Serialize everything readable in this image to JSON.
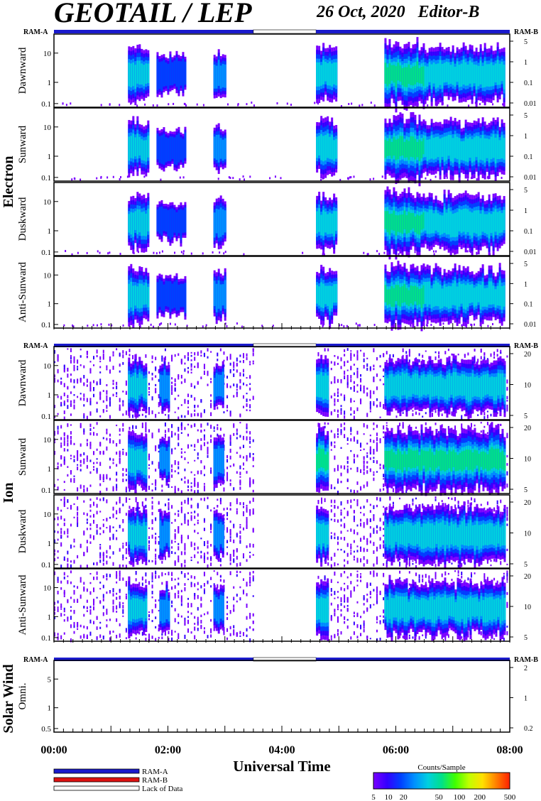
{
  "header": {
    "title": "GEOTAIL / LEP",
    "date": "26 Oct, 2020",
    "editor": "Editor-B"
  },
  "ram_labels": {
    "left": "RAM-A",
    "right": "RAM-B"
  },
  "groups": {
    "electron": "Electron",
    "ion": "Ion",
    "solar_wind": "Solar Wind"
  },
  "chart_data": {
    "type": "heatmap",
    "xlabel": "Universal Time",
    "x_ticks": [
      "00:00",
      "02:00",
      "04:00",
      "06:00",
      "08:00"
    ],
    "xlim_hours": [
      0,
      8
    ],
    "data_gap_hours": [
      3.5,
      4.6
    ],
    "panels": [
      {
        "group": "Electron",
        "ylabel": "Dawnward",
        "left_ticks": [
          "10",
          "1",
          "0.1"
        ],
        "right_ticks": [
          "5",
          "1",
          "0.1",
          "0.01"
        ],
        "events": [
          {
            "start": 1.3,
            "end": 1.65,
            "level": 3
          },
          {
            "start": 1.8,
            "end": 2.3,
            "level": 1
          },
          {
            "start": 2.8,
            "end": 3.0,
            "level": 2
          },
          {
            "start": 4.6,
            "end": 4.95,
            "level": 3
          },
          {
            "start": 5.8,
            "end": 6.5,
            "level": 4
          },
          {
            "start": 6.5,
            "end": 7.9,
            "level": 3
          }
        ]
      },
      {
        "group": "Electron",
        "ylabel": "Sunward",
        "left_ticks": [
          "10",
          "1",
          "0.1"
        ],
        "right_ticks": [
          "5",
          "1",
          "0.1",
          "0.01"
        ],
        "events": [
          {
            "start": 1.3,
            "end": 1.65,
            "level": 3
          },
          {
            "start": 1.8,
            "end": 2.3,
            "level": 1
          },
          {
            "start": 2.8,
            "end": 3.0,
            "level": 2
          },
          {
            "start": 4.6,
            "end": 4.95,
            "level": 3
          },
          {
            "start": 5.8,
            "end": 6.5,
            "level": 4
          },
          {
            "start": 6.5,
            "end": 7.9,
            "level": 3
          }
        ]
      },
      {
        "group": "Electron",
        "ylabel": "Duskward",
        "left_ticks": [
          "10",
          "1",
          "0.1"
        ],
        "right_ticks": [
          "5",
          "1",
          "0.1",
          "0.01"
        ],
        "events": [
          {
            "start": 1.3,
            "end": 1.65,
            "level": 3
          },
          {
            "start": 1.8,
            "end": 2.3,
            "level": 1
          },
          {
            "start": 2.8,
            "end": 3.0,
            "level": 2
          },
          {
            "start": 4.6,
            "end": 4.95,
            "level": 3
          },
          {
            "start": 5.8,
            "end": 6.5,
            "level": 4
          },
          {
            "start": 6.5,
            "end": 7.9,
            "level": 3
          }
        ]
      },
      {
        "group": "Electron",
        "ylabel": "Anti-Sunward",
        "left_ticks": [
          "10",
          "1",
          "0.1"
        ],
        "right_ticks": [
          "5",
          "1",
          "0.1",
          "0.01"
        ],
        "events": [
          {
            "start": 1.3,
            "end": 1.65,
            "level": 3
          },
          {
            "start": 1.8,
            "end": 2.3,
            "level": 1
          },
          {
            "start": 2.8,
            "end": 3.0,
            "level": 2
          },
          {
            "start": 4.6,
            "end": 4.95,
            "level": 3
          },
          {
            "start": 5.8,
            "end": 6.5,
            "level": 4
          },
          {
            "start": 6.5,
            "end": 7.9,
            "level": 3
          }
        ]
      },
      {
        "group": "Ion",
        "ylabel": "Dawnward",
        "left_ticks": [
          "10",
          "1",
          "0.1"
        ],
        "right_ticks": [
          "20",
          "10",
          "5"
        ],
        "events": [
          {
            "start": 1.3,
            "end": 1.6,
            "level": 3
          },
          {
            "start": 1.85,
            "end": 2.0,
            "level": 2
          },
          {
            "start": 2.8,
            "end": 2.95,
            "level": 2
          },
          {
            "start": 4.6,
            "end": 4.8,
            "level": 3
          },
          {
            "start": 5.8,
            "end": 7.9,
            "level": 3
          }
        ]
      },
      {
        "group": "Ion",
        "ylabel": "Sunward",
        "left_ticks": [
          "10",
          "1",
          "0.1"
        ],
        "right_ticks": [
          "20",
          "10",
          "5"
        ],
        "events": [
          {
            "start": 1.3,
            "end": 1.6,
            "level": 3
          },
          {
            "start": 1.85,
            "end": 2.0,
            "level": 2
          },
          {
            "start": 2.8,
            "end": 2.95,
            "level": 2
          },
          {
            "start": 4.6,
            "end": 4.8,
            "level": 4
          },
          {
            "start": 5.8,
            "end": 7.9,
            "level": 4
          }
        ]
      },
      {
        "group": "Ion",
        "ylabel": "Duskward",
        "left_ticks": [
          "10",
          "1",
          "0.1"
        ],
        "right_ticks": [
          "20",
          "10",
          "5"
        ],
        "events": [
          {
            "start": 1.3,
            "end": 1.6,
            "level": 3
          },
          {
            "start": 1.85,
            "end": 2.0,
            "level": 2
          },
          {
            "start": 2.8,
            "end": 2.95,
            "level": 2
          },
          {
            "start": 4.6,
            "end": 4.8,
            "level": 3
          },
          {
            "start": 5.8,
            "end": 7.9,
            "level": 3
          }
        ]
      },
      {
        "group": "Ion",
        "ylabel": "Anti-Sunward",
        "left_ticks": [
          "10",
          "1",
          "0.1"
        ],
        "right_ticks": [
          "20",
          "10",
          "5"
        ],
        "events": [
          {
            "start": 1.3,
            "end": 1.6,
            "level": 3
          },
          {
            "start": 1.85,
            "end": 2.0,
            "level": 2
          },
          {
            "start": 2.8,
            "end": 2.95,
            "level": 2
          },
          {
            "start": 4.6,
            "end": 4.8,
            "level": 3
          },
          {
            "start": 5.8,
            "end": 7.9,
            "level": 3
          }
        ]
      },
      {
        "group": "Solar Wind",
        "ylabel": "Omni.",
        "left_ticks": [
          "5",
          "1",
          "0.5"
        ],
        "right_ticks": [
          "2",
          "1",
          "0.2"
        ],
        "events": []
      }
    ],
    "colorbar": {
      "label": "Counts/Sample",
      "ticks": [
        "5",
        "10",
        "20",
        "50",
        "100",
        "200",
        "500"
      ],
      "colors": [
        "#7a00ff",
        "#3300ff",
        "#0040ff",
        "#0090ff",
        "#00d0e0",
        "#00e08a",
        "#40ff00",
        "#c0ff00",
        "#ffe000",
        "#ff8000",
        "#ff2000"
      ]
    },
    "legend": [
      {
        "label": "RAM-A",
        "color": "#1a1acc"
      },
      {
        "label": "RAM-B",
        "color": "#dd1111"
      },
      {
        "label": "Lack of Data",
        "color": "#ffffff"
      }
    ]
  }
}
